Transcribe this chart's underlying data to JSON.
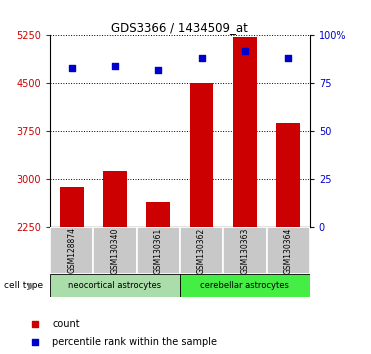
{
  "title": "GDS3366 / 1434509_at",
  "samples": [
    "GSM128874",
    "GSM130340",
    "GSM130361",
    "GSM130362",
    "GSM130363",
    "GSM130364"
  ],
  "counts": [
    2870,
    3120,
    2630,
    4500,
    5230,
    3870
  ],
  "percentile_ranks": [
    83,
    84,
    82,
    88,
    92,
    88
  ],
  "ylim_left": [
    2250,
    5250
  ],
  "ylim_right": [
    0,
    100
  ],
  "yticks_left": [
    2250,
    3000,
    3750,
    4500,
    5250
  ],
  "yticks_right": [
    0,
    25,
    50,
    75,
    100
  ],
  "ytick_labels_right": [
    "0",
    "25",
    "50",
    "75",
    "100%"
  ],
  "bar_color": "#cc0000",
  "scatter_color": "#0000cc",
  "bar_width": 0.55,
  "group1_label": "neocortical astrocytes",
  "group2_label": "cerebellar astrocytes",
  "group1_color": "#aaddaa",
  "group2_color": "#44ee44",
  "cell_type_label": "cell type",
  "legend_count": "count",
  "legend_percentile": "percentile rank within the sample",
  "axis_left_color": "#cc0000",
  "axis_right_color": "#0000cc",
  "label_bg_color": "#c8c8c8"
}
